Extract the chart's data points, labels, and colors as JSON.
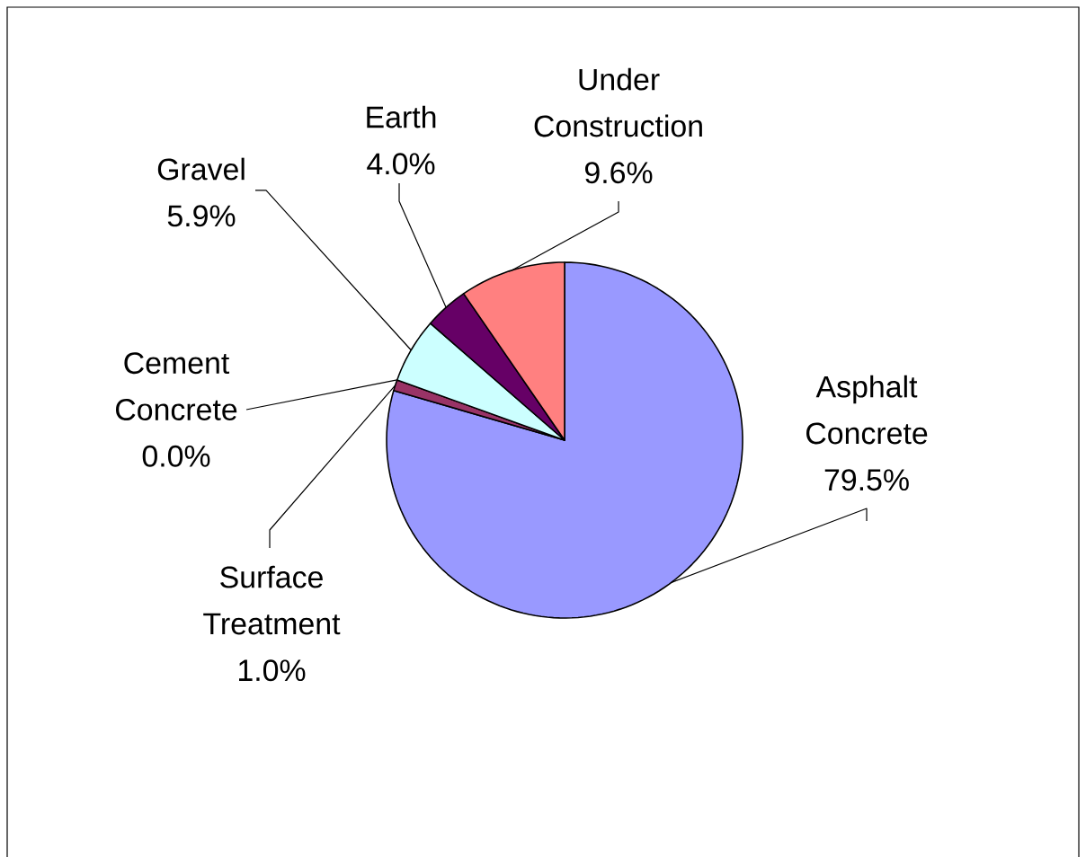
{
  "chart_data": {
    "type": "pie",
    "categories": [
      "Asphalt Concrete",
      "Surface Treatment",
      "Cement Concrete",
      "Gravel",
      "Earth",
      "Under Construction"
    ],
    "values": [
      79.5,
      1.0,
      0.0,
      5.9,
      4.0,
      9.6
    ],
    "value_labels": [
      "79.5%",
      "1.0%",
      "0.0%",
      "5.9%",
      "4.0%",
      "9.6%"
    ],
    "colors": [
      "#9999ff",
      "#993366",
      "#ffffcc",
      "#ccffff",
      "#660066",
      "#ff8080"
    ]
  }
}
